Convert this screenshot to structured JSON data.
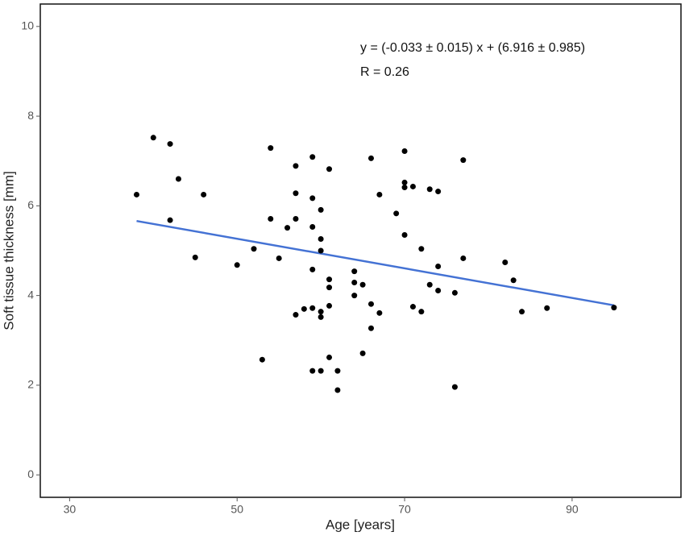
{
  "chart_data": {
    "type": "scatter",
    "xlabel": "Age [years]",
    "ylabel": "Soft tissue thickness [mm]",
    "annotations": [
      "y = (-0.033 ± 0.015) x + (6.916 ± 0.985)",
      "R = 0.26"
    ],
    "xlim": [
      26.5,
      103
    ],
    "ylim": [
      -0.5,
      10.5
    ],
    "xticks": [
      30,
      50,
      70,
      90
    ],
    "yticks": [
      0,
      2,
      4,
      6,
      8,
      10
    ],
    "color": "#000000",
    "fit": {
      "color": "#4472d4",
      "slope": -0.033,
      "intercept": 6.916,
      "x": [
        38,
        95
      ]
    },
    "x": [
      38,
      40,
      42,
      42,
      43,
      45,
      46,
      50,
      52,
      53,
      54,
      54,
      55,
      56,
      57,
      57,
      57,
      57,
      58,
      59,
      59,
      59,
      59,
      59,
      59,
      60,
      60,
      60,
      60,
      60,
      60,
      61,
      61,
      61,
      61,
      61,
      62,
      62,
      64,
      64,
      64,
      65,
      65,
      66,
      66,
      66,
      67,
      67,
      69,
      70,
      70,
      70,
      70,
      71,
      71,
      72,
      72,
      73,
      73,
      74,
      74,
      74,
      76,
      76,
      77,
      77,
      82,
      83,
      84,
      87,
      95
    ],
    "values": [
      6.25,
      7.52,
      7.38,
      5.68,
      6.6,
      4.85,
      6.25,
      4.68,
      5.04,
      2.57,
      7.29,
      5.71,
      4.83,
      5.51,
      6.89,
      6.28,
      5.71,
      3.57,
      3.7,
      7.09,
      6.17,
      5.53,
      4.58,
      3.72,
      2.32,
      5.91,
      5.26,
      5.0,
      3.64,
      3.52,
      2.32,
      6.82,
      4.36,
      4.18,
      3.77,
      2.62,
      2.32,
      1.89,
      4.54,
      4.29,
      4.0,
      4.24,
      2.71,
      7.06,
      3.81,
      3.27,
      6.25,
      3.61,
      5.83,
      7.22,
      6.52,
      6.41,
      5.35,
      6.43,
      3.75,
      5.04,
      3.64,
      6.37,
      4.24,
      6.32,
      4.65,
      4.11,
      4.06,
      1.96,
      7.02,
      4.83,
      4.74,
      4.34,
      3.64,
      3.72,
      3.73
    ]
  }
}
